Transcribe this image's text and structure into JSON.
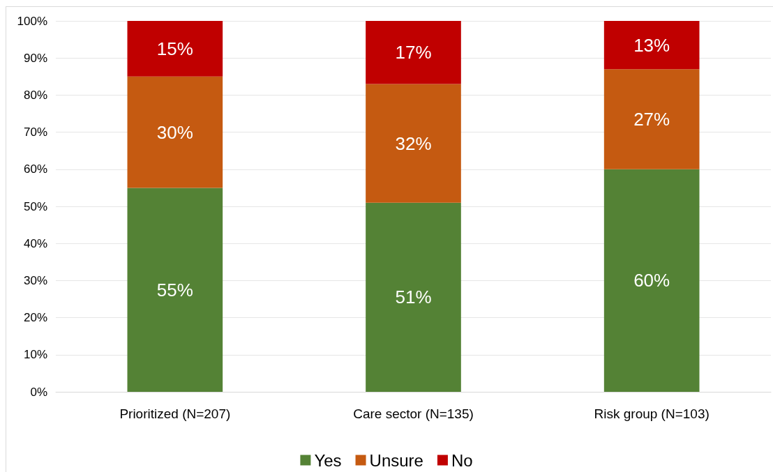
{
  "chart_data": {
    "type": "bar",
    "stacked": true,
    "categories": [
      "Prioritized (N=207)",
      "Care sector (N=135)",
      "Risk group (N=103)"
    ],
    "series": [
      {
        "name": "Yes",
        "color": "#548235",
        "values": [
          55,
          51,
          60
        ],
        "value_labels": [
          "55%",
          "51%",
          "60%"
        ]
      },
      {
        "name": "Unsure",
        "color": "#c55a11",
        "values": [
          30,
          32,
          27
        ],
        "value_labels": [
          "30%",
          "32%",
          "27%"
        ]
      },
      {
        "name": "No",
        "color": "#c00000",
        "values": [
          15,
          17,
          13
        ],
        "value_labels": [
          "15%",
          "17%",
          "13%"
        ]
      }
    ],
    "ylim": [
      0,
      100
    ],
    "yticks": [
      {
        "value": 0,
        "label": "0%"
      },
      {
        "value": 10,
        "label": "10%"
      },
      {
        "value": 20,
        "label": "20%"
      },
      {
        "value": 30,
        "label": "30%"
      },
      {
        "value": 40,
        "label": "40%"
      },
      {
        "value": 50,
        "label": "50%"
      },
      {
        "value": 60,
        "label": "60%"
      },
      {
        "value": 70,
        "label": "70%"
      },
      {
        "value": 80,
        "label": "80%"
      },
      {
        "value": 90,
        "label": "90%"
      },
      {
        "value": 100,
        "label": "100%"
      }
    ],
    "grid": "y",
    "legend": "bottom"
  }
}
